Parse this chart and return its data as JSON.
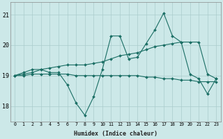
{
  "xlabel": "Humidex (Indice chaleur)",
  "bg_color": "#cce8e8",
  "grid_color": "#aacccc",
  "line_color": "#1a6e64",
  "xlim": [
    -0.5,
    23.5
  ],
  "ylim": [
    17.5,
    21.4
  ],
  "yticks": [
    18,
    19,
    20,
    21
  ],
  "xticks": [
    0,
    1,
    2,
    3,
    4,
    5,
    6,
    7,
    8,
    9,
    10,
    11,
    12,
    13,
    14,
    15,
    16,
    17,
    18,
    19,
    20,
    21,
    22,
    23
  ],
  "series_spiky": [
    19.0,
    19.1,
    19.2,
    19.2,
    19.1,
    19.1,
    18.7,
    18.1,
    17.7,
    18.3,
    19.2,
    20.3,
    20.3,
    19.55,
    19.6,
    20.05,
    20.5,
    21.05,
    20.3,
    20.1,
    19.05,
    18.9,
    18.4,
    18.9
  ],
  "series_flat": [
    19.0,
    19.0,
    19.05,
    19.05,
    19.05,
    19.05,
    19.05,
    19.0,
    19.0,
    19.0,
    19.0,
    19.0,
    19.0,
    19.0,
    19.0,
    18.95,
    18.95,
    18.9,
    18.9,
    18.85,
    18.85,
    18.8,
    18.8,
    18.8
  ],
  "series_trend": [
    19.0,
    19.05,
    19.1,
    19.2,
    19.25,
    19.3,
    19.35,
    19.35,
    19.35,
    19.4,
    19.45,
    19.55,
    19.65,
    19.7,
    19.75,
    19.85,
    19.95,
    20.0,
    20.05,
    20.1,
    20.1,
    20.1,
    19.05,
    18.9
  ]
}
